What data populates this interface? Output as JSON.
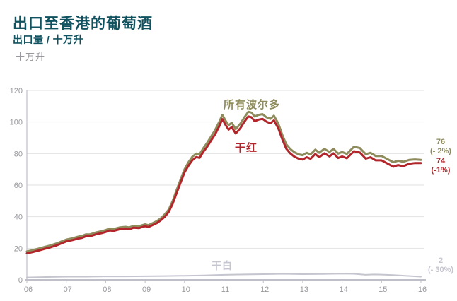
{
  "header": {
    "title": "出口至香港的葡萄酒",
    "subtitle": "出口量 / 十万升",
    "unit_label": "十万升"
  },
  "colors": {
    "title_teal": "#10525f",
    "bordeaux_olive": "#8e8c5c",
    "dry_red": "#b2262b",
    "dry_white": "#c5c5cf",
    "axis_text": "#98989e",
    "gridline": "#e2e2e2",
    "axis_line": "#bfbfca",
    "left_spine": "#ccccd6",
    "background": "#ffffff"
  },
  "chart_data": {
    "type": "line",
    "title": "出口至香港的葡萄酒",
    "xlabel": "",
    "ylabel": "十万升",
    "xlim": [
      6,
      16
    ],
    "ylim": [
      0,
      120
    ],
    "grid": true,
    "legend_position": "inline-annotations",
    "x_tick_values": [
      6,
      7,
      8,
      9,
      10,
      11,
      12,
      13,
      14,
      15,
      16
    ],
    "x_tick_labels": [
      "06",
      "07",
      "08",
      "09",
      "10",
      "11",
      "12",
      "13",
      "14",
      "15",
      "16"
    ],
    "y_ticks": [
      0,
      20,
      40,
      60,
      80,
      100,
      120
    ],
    "series": [
      {
        "id": "bordeaux-total",
        "name": "所有波尔多",
        "color": "#8e8c5c",
        "width": 3,
        "end_value": 76,
        "end_labels": [
          "76",
          "(- 2%)"
        ],
        "points": [
          [
            6.0,
            18
          ],
          [
            6.15,
            18.8
          ],
          [
            6.3,
            19.8
          ],
          [
            6.45,
            20.8
          ],
          [
            6.6,
            21.8
          ],
          [
            6.75,
            23
          ],
          [
            6.9,
            24.5
          ],
          [
            7.0,
            25.5
          ],
          [
            7.15,
            26.3
          ],
          [
            7.3,
            27.3
          ],
          [
            7.4,
            27.8
          ],
          [
            7.5,
            28.8
          ],
          [
            7.6,
            28.8
          ],
          [
            7.75,
            30
          ],
          [
            7.9,
            30.8
          ],
          [
            8.0,
            31.5
          ],
          [
            8.1,
            32.5
          ],
          [
            8.2,
            32.2
          ],
          [
            8.35,
            33.2
          ],
          [
            8.5,
            33.6
          ],
          [
            8.6,
            33.2
          ],
          [
            8.7,
            34.2
          ],
          [
            8.85,
            34
          ],
          [
            9.0,
            35.2
          ],
          [
            9.08,
            34.6
          ],
          [
            9.2,
            36
          ],
          [
            9.3,
            37.2
          ],
          [
            9.4,
            39
          ],
          [
            9.5,
            41.5
          ],
          [
            9.6,
            44.5
          ],
          [
            9.7,
            50
          ],
          [
            9.8,
            57
          ],
          [
            9.9,
            63.5
          ],
          [
            10.0,
            70
          ],
          [
            10.1,
            74.5
          ],
          [
            10.2,
            78
          ],
          [
            10.3,
            80
          ],
          [
            10.38,
            79.5
          ],
          [
            10.48,
            83.5
          ],
          [
            10.58,
            87
          ],
          [
            10.68,
            91
          ],
          [
            10.78,
            95
          ],
          [
            10.88,
            100
          ],
          [
            10.96,
            104.5
          ],
          [
            11.05,
            100.5
          ],
          [
            11.12,
            98
          ],
          [
            11.2,
            99.5
          ],
          [
            11.3,
            95.5
          ],
          [
            11.42,
            99
          ],
          [
            11.52,
            103
          ],
          [
            11.62,
            106.5
          ],
          [
            11.7,
            106
          ],
          [
            11.78,
            103.5
          ],
          [
            11.88,
            104.5
          ],
          [
            11.98,
            105
          ],
          [
            12.08,
            103
          ],
          [
            12.18,
            102
          ],
          [
            12.27,
            104
          ],
          [
            12.38,
            99
          ],
          [
            12.48,
            92
          ],
          [
            12.58,
            86
          ],
          [
            12.68,
            83
          ],
          [
            12.78,
            81
          ],
          [
            12.9,
            79.5
          ],
          [
            13.0,
            79
          ],
          [
            13.1,
            80.5
          ],
          [
            13.2,
            79.5
          ],
          [
            13.32,
            82.5
          ],
          [
            13.42,
            80.5
          ],
          [
            13.55,
            83
          ],
          [
            13.68,
            81
          ],
          [
            13.78,
            83
          ],
          [
            13.9,
            80
          ],
          [
            14.0,
            81
          ],
          [
            14.12,
            79.8
          ],
          [
            14.3,
            84.3
          ],
          [
            14.45,
            83.5
          ],
          [
            14.6,
            79.6
          ],
          [
            14.72,
            80.5
          ],
          [
            14.85,
            78.5
          ],
          [
            15.0,
            78.5
          ],
          [
            15.15,
            76.5
          ],
          [
            15.3,
            74.5
          ],
          [
            15.42,
            75.5
          ],
          [
            15.55,
            74.8
          ],
          [
            15.7,
            76
          ],
          [
            15.85,
            76.3
          ],
          [
            16.0,
            76
          ]
        ]
      },
      {
        "id": "dry-red",
        "name": "干红",
        "color": "#b2262b",
        "width": 3,
        "end_value": 74,
        "end_labels": [
          "74",
          "(-1%)"
        ],
        "points": [
          [
            6.0,
            16.8
          ],
          [
            6.15,
            17.6
          ],
          [
            6.3,
            18.6
          ],
          [
            6.45,
            19.6
          ],
          [
            6.6,
            20.6
          ],
          [
            6.75,
            21.8
          ],
          [
            6.9,
            23.3
          ],
          [
            7.0,
            24.3
          ],
          [
            7.15,
            25.1
          ],
          [
            7.3,
            26.1
          ],
          [
            7.4,
            26.6
          ],
          [
            7.5,
            27.6
          ],
          [
            7.6,
            27.6
          ],
          [
            7.75,
            28.8
          ],
          [
            7.9,
            29.6
          ],
          [
            8.0,
            30.3
          ],
          [
            8.1,
            31.3
          ],
          [
            8.2,
            31
          ],
          [
            8.35,
            32
          ],
          [
            8.5,
            32.4
          ],
          [
            8.6,
            32
          ],
          [
            8.7,
            33
          ],
          [
            8.85,
            32.8
          ],
          [
            9.0,
            34
          ],
          [
            9.08,
            33.4
          ],
          [
            9.2,
            34.8
          ],
          [
            9.3,
            36
          ],
          [
            9.4,
            37.8
          ],
          [
            9.5,
            40
          ],
          [
            9.6,
            43
          ],
          [
            9.7,
            48.2
          ],
          [
            9.8,
            55
          ],
          [
            9.9,
            61.5
          ],
          [
            10.0,
            68
          ],
          [
            10.1,
            72.3
          ],
          [
            10.2,
            75.8
          ],
          [
            10.3,
            77.8
          ],
          [
            10.38,
            77.3
          ],
          [
            10.48,
            81.2
          ],
          [
            10.58,
            84.5
          ],
          [
            10.68,
            88.5
          ],
          [
            10.78,
            92.3
          ],
          [
            10.88,
            97.2
          ],
          [
            10.96,
            101.8
          ],
          [
            11.05,
            97.8
          ],
          [
            11.12,
            95.2
          ],
          [
            11.2,
            96.8
          ],
          [
            11.3,
            92.7
          ],
          [
            11.42,
            96.2
          ],
          [
            11.52,
            100.2
          ],
          [
            11.62,
            103.5
          ],
          [
            11.7,
            103
          ],
          [
            11.78,
            100.5
          ],
          [
            11.88,
            101.5
          ],
          [
            11.98,
            102
          ],
          [
            12.08,
            100.2
          ],
          [
            12.18,
            99.2
          ],
          [
            12.27,
            101
          ],
          [
            12.38,
            96
          ],
          [
            12.48,
            89.2
          ],
          [
            12.58,
            83.2
          ],
          [
            12.68,
            80.2
          ],
          [
            12.78,
            78.2
          ],
          [
            12.9,
            76.7
          ],
          [
            13.0,
            76.2
          ],
          [
            13.1,
            77.7
          ],
          [
            13.2,
            76.7
          ],
          [
            13.32,
            79.7
          ],
          [
            13.42,
            77.7
          ],
          [
            13.55,
            80.2
          ],
          [
            13.68,
            78.2
          ],
          [
            13.78,
            80.2
          ],
          [
            13.9,
            77.2
          ],
          [
            14.0,
            78.2
          ],
          [
            14.12,
            77
          ],
          [
            14.3,
            81.5
          ],
          [
            14.45,
            80.7
          ],
          [
            14.6,
            76.8
          ],
          [
            14.72,
            77.7
          ],
          [
            14.85,
            75.7
          ],
          [
            15.0,
            75.7
          ],
          [
            15.15,
            73.7
          ],
          [
            15.3,
            71.7
          ],
          [
            15.42,
            72.7
          ],
          [
            15.55,
            72
          ],
          [
            15.7,
            73.5
          ],
          [
            15.85,
            74
          ],
          [
            16.0,
            74
          ]
        ]
      },
      {
        "id": "dry-white",
        "name": "干白",
        "color": "#c5c5cf",
        "width": 2,
        "end_value": 2,
        "end_labels": [
          "2",
          "(- 30%)"
        ],
        "points": [
          [
            6.0,
            1.5
          ],
          [
            6.5,
            1.8
          ],
          [
            7.0,
            2
          ],
          [
            7.5,
            2
          ],
          [
            8.0,
            2.2
          ],
          [
            8.5,
            2.2
          ],
          [
            9.0,
            2.3
          ],
          [
            9.5,
            2.4
          ],
          [
            10.0,
            2.6
          ],
          [
            10.5,
            2.8
          ],
          [
            11.0,
            3.2
          ],
          [
            11.5,
            3.4
          ],
          [
            12.0,
            3.6
          ],
          [
            12.5,
            3.8
          ],
          [
            13.0,
            3.6
          ],
          [
            13.5,
            3.7
          ],
          [
            14.0,
            3.9
          ],
          [
            14.3,
            3.8
          ],
          [
            14.6,
            3.2
          ],
          [
            14.8,
            3.4
          ],
          [
            15.0,
            3.3
          ],
          [
            15.3,
            3.0
          ],
          [
            15.6,
            2.6
          ],
          [
            15.8,
            2.3
          ],
          [
            16.0,
            2
          ]
        ]
      }
    ]
  }
}
